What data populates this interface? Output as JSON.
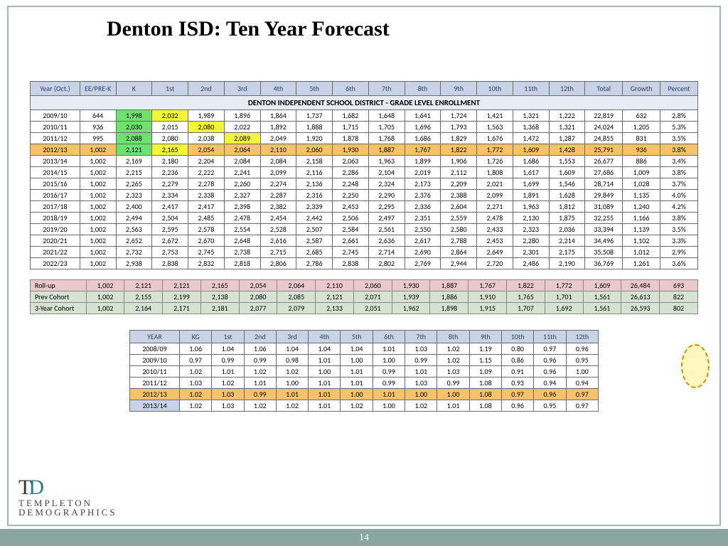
{
  "title": "Denton ISD:   Ten Year Forecast",
  "table_caption": "DENTON INDEPENDENT SCHOOL DISTRICT - GRADE LEVEL ENROLLMENT",
  "headers": [
    "Year (Oct.)",
    "EE/PRE-K",
    "K",
    "1st",
    "2nd",
    "3rd",
    "4th",
    "5th",
    "6th",
    "7th",
    "8th",
    "9th",
    "10th",
    "11th",
    "12th",
    "Total",
    "Growth",
    "Percent"
  ],
  "rows": [
    {
      "cells": [
        "2009/10",
        "644",
        "1,998",
        "2,032",
        "1,989",
        "1,896",
        "1,864",
        "1,737",
        "1,682",
        "1,648",
        "1,641",
        "1,724",
        "1,421",
        "1,321",
        "1,222",
        "22,819",
        "632",
        "2.8%"
      ],
      "hl": {
        "2": "green",
        "3": "yellow"
      }
    },
    {
      "cells": [
        "2010/11",
        "936",
        "2,030",
        "2,015",
        "2,080",
        "2,022",
        "1,892",
        "1,888",
        "1,715",
        "1,705",
        "1,696",
        "1,793",
        "1,563",
        "1,368",
        "1,321",
        "24,024",
        "1,205",
        "5.3%"
      ],
      "hl": {
        "2": "green",
        "4": "yellow"
      }
    },
    {
      "cells": [
        "2011/12",
        "995",
        "2,088",
        "2,080",
        "2,038",
        "2,089",
        "2,049",
        "1,920",
        "1,878",
        "1,768",
        "1,686",
        "1,829",
        "1,676",
        "1,472",
        "1,287",
        "24,855",
        "831",
        "3.5%"
      ],
      "hl": {
        "2": "green",
        "5": "yellow"
      }
    },
    {
      "cells": [
        "2012/13",
        "1,002",
        "2,121",
        "2,165",
        "2,054",
        "2,064",
        "2,110",
        "2,060",
        "1,930",
        "1,887",
        "1,767",
        "1,822",
        "1,772",
        "1,609",
        "1,428",
        "25,791",
        "936",
        "3.8%"
      ],
      "rowhl": true,
      "hl": {
        "2": "green",
        "3": "yellow"
      }
    },
    {
      "cells": [
        "2013/14",
        "1,002",
        "2,169",
        "2,180",
        "2,204",
        "2,084",
        "2,084",
        "2,158",
        "2,063",
        "1,963",
        "1,899",
        "1,906",
        "1,726",
        "1,686",
        "1,553",
        "26,677",
        "886",
        "3.4%"
      ]
    },
    {
      "cells": [
        "2014/15",
        "1,002",
        "2,215",
        "2,236",
        "2,222",
        "2,241",
        "2,099",
        "2,116",
        "2,286",
        "2,104",
        "2,019",
        "2,112",
        "1,808",
        "1,617",
        "1,609",
        "27,686",
        "1,009",
        "3.8%"
      ]
    },
    {
      "cells": [
        "2015/16",
        "1,002",
        "2,265",
        "2,279",
        "2,278",
        "2,260",
        "2,274",
        "2,136",
        "2,248",
        "2,324",
        "2,173",
        "2,209",
        "2,021",
        "1,699",
        "1,546",
        "28,714",
        "1,028",
        "3.7%"
      ]
    },
    {
      "cells": [
        "2016/17",
        "1,002",
        "2,323",
        "2,334",
        "2,338",
        "2,327",
        "2,287",
        "2,316",
        "2,250",
        "2,290",
        "2,376",
        "2,388",
        "2,099",
        "1,891",
        "1,628",
        "29,849",
        "1,135",
        "4.0%"
      ]
    },
    {
      "cells": [
        "2017/18",
        "1,002",
        "2,400",
        "2,417",
        "2,417",
        "2,398",
        "2,382",
        "2,339",
        "2,453",
        "2,295",
        "2,336",
        "2,604",
        "2,271",
        "1,963",
        "1,812",
        "31,089",
        "1,240",
        "4.2%"
      ]
    },
    {
      "cells": [
        "2018/19",
        "1,002",
        "2,494",
        "2,504",
        "2,485",
        "2,478",
        "2,454",
        "2,442",
        "2,506",
        "2,497",
        "2,351",
        "2,559",
        "2,478",
        "2,130",
        "1,875",
        "32,255",
        "1,166",
        "3.8%"
      ]
    },
    {
      "cells": [
        "2019/20",
        "1,002",
        "2,563",
        "2,595",
        "2,578",
        "2,554",
        "2,528",
        "2,507",
        "2,584",
        "2,561",
        "2,550",
        "2,580",
        "2,433",
        "2,323",
        "2,036",
        "33,394",
        "1,139",
        "3.5%"
      ]
    },
    {
      "cells": [
        "2020/21",
        "1,002",
        "2,652",
        "2,672",
        "2,670",
        "2,648",
        "2,616",
        "2,587",
        "2,661",
        "2,636",
        "2,617",
        "2,788",
        "2,453",
        "2,280",
        "2,214",
        "34,496",
        "1,102",
        "3.3%"
      ]
    },
    {
      "cells": [
        "2021/22",
        "1,002",
        "2,732",
        "2,753",
        "2,745",
        "2,738",
        "2,715",
        "2,685",
        "2,745",
        "2,714",
        "2,690",
        "2,864",
        "2,649",
        "2,301",
        "2,175",
        "35,508",
        "1,012",
        "2.9%"
      ]
    },
    {
      "cells": [
        "2022/23",
        "1,002",
        "2,938",
        "2,838",
        "2,832",
        "2,818",
        "2,806",
        "2,786",
        "2,838",
        "2,802",
        "2,769",
        "2,944",
        "2,720",
        "2,486",
        "2,190",
        "36,769",
        "1,261",
        "3.6%"
      ]
    }
  ],
  "summary_rows": [
    {
      "label": "Roll-up",
      "cls": "r1",
      "cells": [
        "1,002",
        "2,121",
        "2,121",
        "2,165",
        "2,054",
        "2,064",
        "2,110",
        "2,060",
        "1,930",
        "1,887",
        "1,767",
        "1,822",
        "1,772",
        "1,609",
        "26,484",
        "693"
      ]
    },
    {
      "label": "Prev Cohort",
      "cls": "r2",
      "cells": [
        "1,002",
        "2,155",
        "2,199",
        "2,138",
        "2,080",
        "2,085",
        "2,121",
        "2,071",
        "1,939",
        "1,886",
        "1,910",
        "1,765",
        "1,701",
        "1,561",
        "26,613",
        "822"
      ]
    },
    {
      "label": "3-Year Cohort",
      "cls": "r3",
      "cells": [
        "1,002",
        "2,164",
        "2,171",
        "2,181",
        "2,077",
        "2,079",
        "2,133",
        "2,051",
        "1,962",
        "1,898",
        "1,915",
        "1,707",
        "1,692",
        "1,561",
        "26,593",
        "802"
      ]
    }
  ],
  "ratio_headers": [
    "YEAR",
    "KG",
    "1st",
    "2nd",
    "3rd",
    "4th",
    "5th",
    "6th",
    "7th",
    "8th",
    "9th",
    "10th",
    "11th",
    "12th"
  ],
  "ratio_rows": [
    {
      "cells": [
        "2008/09",
        "1.06",
        "1.04",
        "1.06",
        "1.04",
        "1.04",
        "1.04",
        "1.01",
        "1.03",
        "1.02",
        "1.19",
        "0.80",
        "0.97",
        "0.96"
      ]
    },
    {
      "cells": [
        "2009/10",
        "0.97",
        "0.99",
        "0.99",
        "0.98",
        "1.01",
        "1.00",
        "1.00",
        "0.99",
        "1.02",
        "1.15",
        "0.86",
        "0.96",
        "0.95"
      ]
    },
    {
      "cells": [
        "2010/11",
        "1.02",
        "1.01",
        "1.02",
        "1.02",
        "1.00",
        "1.01",
        "0.99",
        "1.01",
        "1.03",
        "1.09",
        "0.91",
        "0.96",
        "1.00"
      ]
    },
    {
      "cells": [
        "2011/12",
        "1.03",
        "1.02",
        "1.01",
        "1.00",
        "1.01",
        "1.01",
        "0.99",
        "1.03",
        "0.99",
        "1.08",
        "0.93",
        "0.94",
        "0.94"
      ]
    },
    {
      "cells": [
        "2012/13",
        "1.02",
        "1.03",
        "0.99",
        "1.01",
        "1.01",
        "1.00",
        "1.01",
        "1.00",
        "1.00",
        "1.08",
        "0.97",
        "0.96",
        "0.97"
      ],
      "rowhl": true
    },
    {
      "cells": [
        "2013/14",
        "1.02",
        "1.03",
        "1.02",
        "1.02",
        "1.01",
        "1.02",
        "1.00",
        "1.02",
        "1.01",
        "1.08",
        "0.96",
        "0.95",
        "0.97"
      ],
      "blue": true
    }
  ],
  "logo_top": "TEMPLETON",
  "logo_sub": "DEMOGRAPHICS",
  "page": "14"
}
